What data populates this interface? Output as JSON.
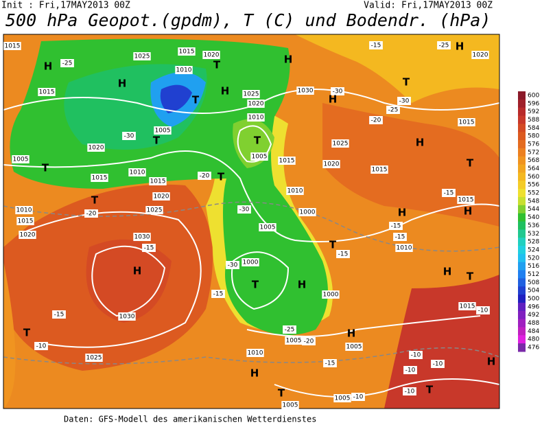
{
  "header": {
    "init": "Init : Fri,17MAY2013 00Z",
    "valid": "Valid: Fri,17MAY2013 00Z",
    "title": "500 hPa Geopot.(gpdm), T (C) und Bodendr. (hPa)"
  },
  "footer": "Daten: GFS-Modell des amerikanischen Wetterdienstes",
  "colorbar": {
    "ticks": [
      600,
      596,
      592,
      588,
      584,
      580,
      576,
      572,
      568,
      564,
      560,
      556,
      552,
      548,
      544,
      540,
      536,
      532,
      528,
      524,
      520,
      516,
      512,
      508,
      504,
      500,
      496,
      492,
      488,
      484,
      480,
      476
    ],
    "colors": [
      "#8b1a2a",
      "#a0202a",
      "#b82a2a",
      "#c8382a",
      "#d44a24",
      "#dc5a20",
      "#e46c20",
      "#ec8020",
      "#f09420",
      "#f2a620",
      "#f4b820",
      "#f4cc28",
      "#eee030",
      "#c8e030",
      "#80d030",
      "#30c030",
      "#20c060",
      "#20c890",
      "#20d0c0",
      "#20d0e0",
      "#20c0f0",
      "#20a0f0",
      "#2080f0",
      "#2060e0",
      "#2040d0",
      "#2020c0",
      "#6020c0",
      "#8020c0",
      "#a020c0",
      "#c020c0",
      "#e020e0",
      "#7a2aa8"
    ]
  },
  "map": {
    "labels": [
      "1015",
      "H",
      "1025",
      "-25",
      "1015",
      "1020",
      "1010",
      "T",
      "H",
      "H",
      "1015",
      "T",
      "1025",
      "1030",
      "-30",
      "H",
      "1020",
      "H",
      "-15",
      "-25",
      "H",
      "1020",
      "T",
      "-30",
      "-25",
      "-20",
      "1015",
      "1010",
      "1005",
      "T",
      "T",
      "1020",
      "-30",
      "1025",
      "H",
      "T",
      "1005",
      "T",
      "1005",
      "1015",
      "1020",
      "1015",
      "1010",
      "1015",
      "1015",
      "-20",
      "T",
      "1010",
      "-15",
      "1015",
      "T",
      "1020",
      "1025",
      "1010",
      "1015",
      "-20",
      "-30",
      "1000",
      "H",
      "H",
      "1030",
      "1020",
      "-15",
      "-15",
      "1005",
      "T",
      "-15",
      "1010",
      "-15",
      "1000",
      "-30",
      "H",
      "H",
      "T",
      "T",
      "H",
      "-15",
      "1000",
      "1015",
      "-10",
      "-15",
      "1030",
      "-25",
      "T",
      "H",
      "1005",
      "-20",
      "-10",
      "1005",
      "1010",
      "-10",
      "-10",
      "1025",
      "-15",
      "H",
      "-10",
      "H",
      "T",
      "-10",
      "T",
      "1005",
      "1005",
      "-10"
    ]
  }
}
